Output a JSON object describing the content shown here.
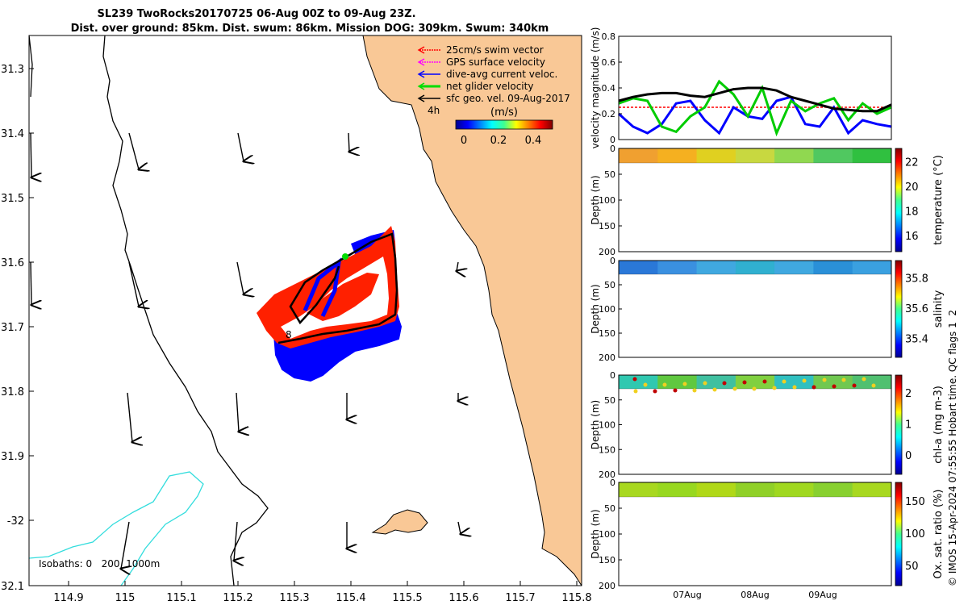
{
  "title": {
    "line1": "SL239 TwoRocks20170725 06-Aug 00Z to 09-Aug 23Z.",
    "line2": "Dist. over ground: 85km. Dist. swum: 86km. Mission DOG: 309km. Swum: 340km"
  },
  "map": {
    "lat_ticks": [
      "31.3",
      "31.4",
      "31.5",
      "31.6",
      "31.7",
      "31.8",
      "31.9",
      "-32",
      "32.1"
    ],
    "lon_ticks": [
      "114.9",
      "115",
      "115.1",
      "115.2",
      "115.3",
      "115.4",
      "115.5",
      "115.6",
      "115.7",
      "115.8"
    ],
    "legend": [
      {
        "label": "25cm/s swim vector",
        "color": "#ff0000"
      },
      {
        "label": "GPS surface velocity",
        "color": "#ff00ff"
      },
      {
        "label": "dive-avg current veloc.",
        "color": "#0000ff"
      },
      {
        "label": "net glider velocity",
        "color": "#00dd00"
      },
      {
        "label": "sfc geo. vel. 09-Aug-2017",
        "color": "#000000"
      }
    ],
    "legend_tag": "4h",
    "colorbar": {
      "label": "(m/s)",
      "ticks": [
        "0",
        "0.2",
        "0.4"
      ]
    },
    "isobaths_label": "Isobaths: 0   200  1000m",
    "track_marker": "8",
    "land_color": "#f9c896",
    "isobath_200_color": "#000000",
    "isobath_1000_color": "#33dddd"
  },
  "panels": [
    {
      "ylabel": "velocity magnitude (m/s)",
      "yticks": [
        "0",
        "0.2",
        "0.4",
        "0.6",
        "0.8"
      ],
      "series": [
        {
          "name": "swim",
          "color": "#ff0000",
          "dashed": true,
          "values": [
            0.25,
            0.25,
            0.25,
            0.25,
            0.25,
            0.25,
            0.25,
            0.25,
            0.25,
            0.25,
            0.25,
            0.25,
            0.25,
            0.25,
            0.25,
            0.25,
            0.25,
            0.25,
            0.25,
            0.25
          ]
        },
        {
          "name": "dive-avg current",
          "color": "#0000ff",
          "values": [
            0.2,
            0.1,
            0.05,
            0.12,
            0.28,
            0.3,
            0.15,
            0.05,
            0.25,
            0.18,
            0.16,
            0.3,
            0.33,
            0.12,
            0.1,
            0.25,
            0.05,
            0.15,
            0.12,
            0.1
          ]
        },
        {
          "name": "net glider",
          "color": "#00cc00",
          "values": [
            0.28,
            0.32,
            0.3,
            0.1,
            0.06,
            0.18,
            0.25,
            0.45,
            0.35,
            0.18,
            0.4,
            0.05,
            0.3,
            0.22,
            0.28,
            0.32,
            0.15,
            0.28,
            0.2,
            0.25
          ]
        },
        {
          "name": "sfc geo",
          "color": "#000000",
          "values": [
            0.3,
            0.33,
            0.35,
            0.36,
            0.36,
            0.34,
            0.33,
            0.36,
            0.39,
            0.4,
            0.4,
            0.38,
            0.33,
            0.3,
            0.27,
            0.24,
            0.23,
            0.22,
            0.22,
            0.27
          ]
        }
      ]
    },
    {
      "ylabel": "Depth (m)",
      "yticks": [
        "0",
        "50",
        "100",
        "150",
        "200"
      ],
      "cbar_label": "temperature (°C)",
      "cbar_ticks": [
        "16",
        "18",
        "20",
        "22"
      ],
      "colors": [
        "#f0a030",
        "#f5b020",
        "#e0d020",
        "#c8d840",
        "#90d850",
        "#50c860",
        "#30c040"
      ]
    },
    {
      "ylabel": "Depth (m)",
      "yticks": [
        "0",
        "50",
        "100",
        "150",
        "200"
      ],
      "cbar_label": "salinity",
      "cbar_ticks": [
        "35.4",
        "35.6",
        "35.8"
      ],
      "colors": [
        "#2a78d8",
        "#3a90e0",
        "#40a8e0",
        "#30b0d0",
        "#40a8e0",
        "#2a90d8",
        "#3aa0e0"
      ]
    },
    {
      "ylabel": "Depth (m)",
      "yticks": [
        "0",
        "50",
        "100",
        "150",
        "200"
      ],
      "cbar_label": "chl-a (mg m-3)",
      "cbar_ticks": [
        "0",
        "1",
        "2"
      ],
      "colors": [
        "#30c8b0",
        "#60c840",
        "#40c0a0",
        "#80d040",
        "#30c0c0",
        "#70c850",
        "#50c070"
      ]
    },
    {
      "ylabel": "Depth (m)",
      "yticks": [
        "0",
        "50",
        "100",
        "150",
        "200"
      ],
      "cbar_label": "Ox. sat. ratio (%)",
      "cbar_ticks": [
        "50",
        "100",
        "150"
      ],
      "colors": [
        "#a8d820",
        "#98d820",
        "#b0d818",
        "#90d028",
        "#a0d820",
        "#88d030",
        "#a8d820"
      ]
    }
  ],
  "time_ticks": [
    "07Aug",
    "08Aug",
    "09Aug"
  ],
  "footer": "© IMOS 15-Apr-2024 07:55:55 Hobart time. QC flags 1  2"
}
